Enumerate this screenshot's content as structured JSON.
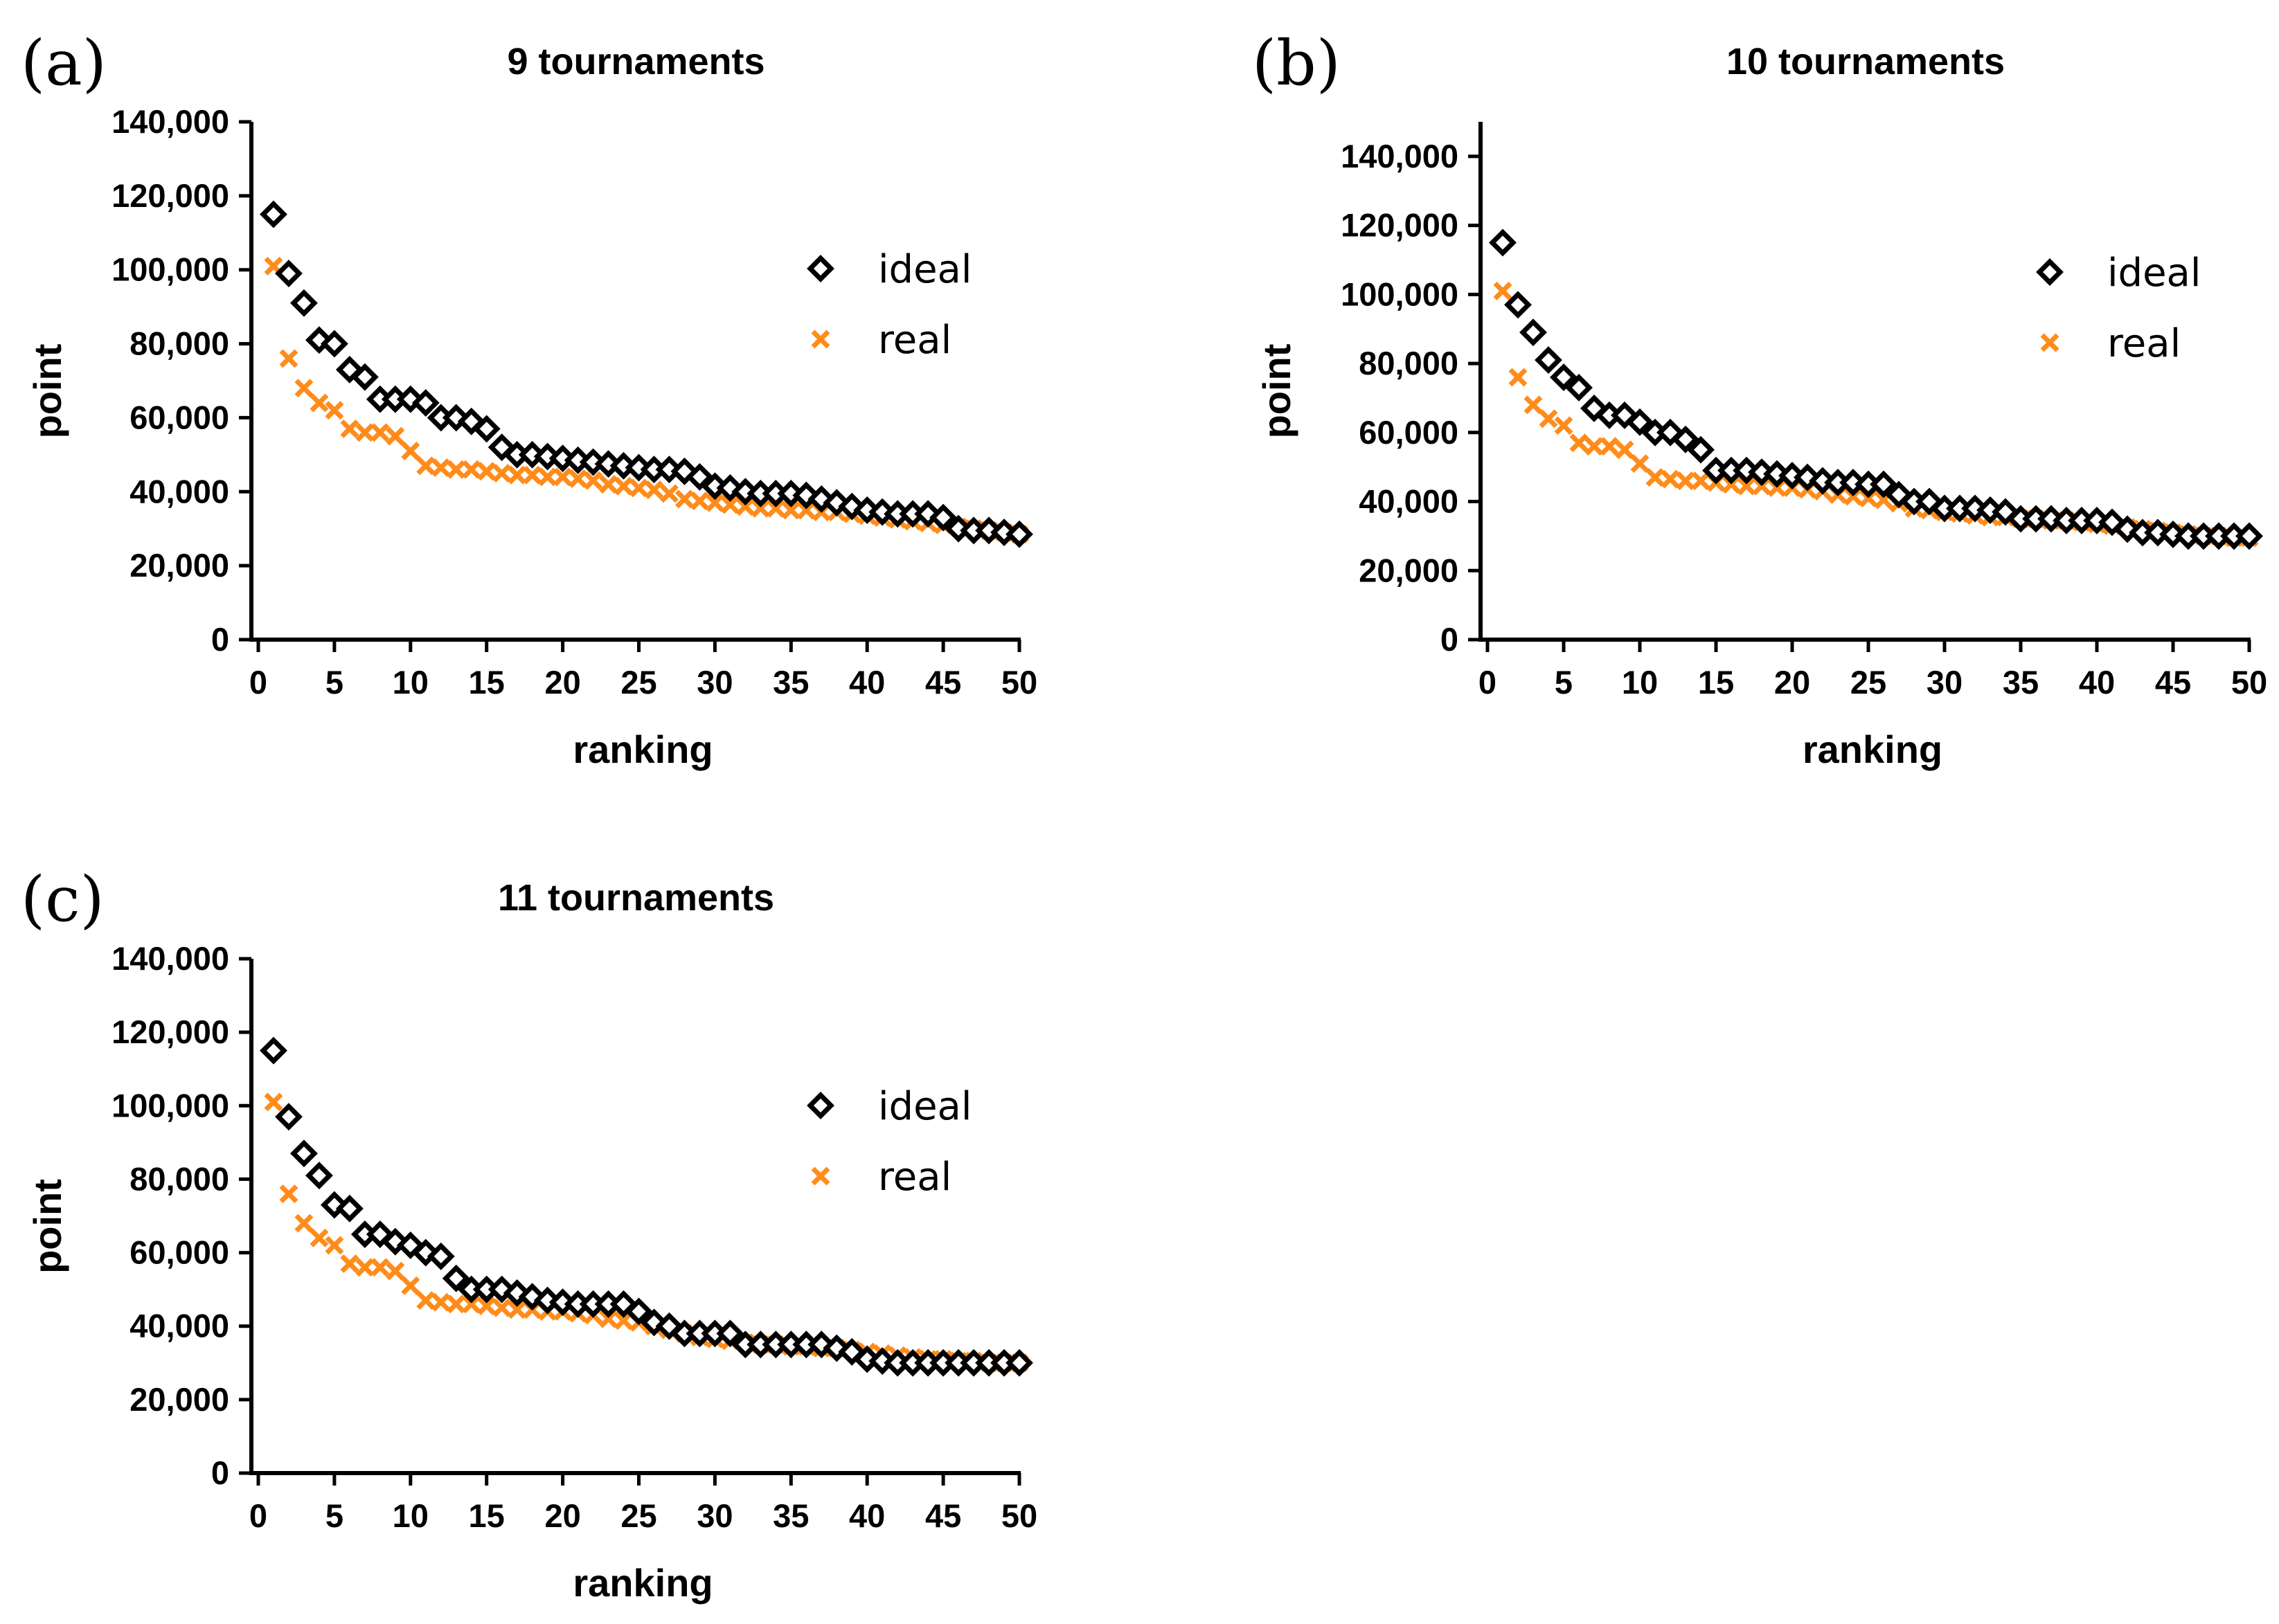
{
  "chart_data": [
    {
      "type": "scatter",
      "panel_label": "(a)",
      "title": "9 tournaments",
      "xlabel": "ranking",
      "ylabel": "point",
      "xlim": [
        0,
        50
      ],
      "ylim": [
        0,
        140000
      ],
      "xticks": [
        "0",
        "5",
        "10",
        "15",
        "20",
        "25",
        "30",
        "35",
        "40",
        "45",
        "50"
      ],
      "yticks": [
        "0",
        "20,000",
        "40,000",
        "60,000",
        "80,000",
        "100,000",
        "120,000",
        "140,000"
      ],
      "legend_position": "top-right",
      "series": [
        {
          "name": "ideal",
          "marker": "diamond",
          "color": "#000000",
          "x": [
            1,
            2,
            3,
            4,
            5,
            6,
            7,
            8,
            9,
            10,
            11,
            12,
            13,
            14,
            15,
            16,
            17,
            18,
            19,
            20,
            21,
            22,
            23,
            24,
            25,
            26,
            27,
            28,
            29,
            30,
            31,
            32,
            33,
            34,
            35,
            36,
            37,
            38,
            39,
            40,
            41,
            42,
            43,
            44,
            45,
            46,
            47,
            48,
            49,
            50
          ],
          "y": [
            115000,
            99000,
            91000,
            81000,
            80000,
            73000,
            71000,
            65000,
            65000,
            65000,
            64000,
            60000,
            60000,
            59000,
            57000,
            52000,
            50000,
            50000,
            49500,
            49000,
            48500,
            48000,
            47500,
            47000,
            46500,
            46000,
            46000,
            45500,
            44000,
            41500,
            41000,
            40000,
            39500,
            39500,
            39500,
            39000,
            38000,
            37000,
            36000,
            35000,
            34500,
            34000,
            34000,
            34000,
            33000,
            30000,
            29500,
            29500,
            29000,
            28500
          ]
        },
        {
          "name": "real",
          "marker": "x",
          "color": "#ff8c1a",
          "x": [
            1,
            2,
            3,
            4,
            5,
            6,
            7,
            8,
            9,
            10,
            11,
            12,
            13,
            14,
            15,
            16,
            17,
            18,
            19,
            20,
            21,
            22,
            23,
            24,
            25,
            26,
            27,
            28,
            29,
            30,
            31,
            32,
            33,
            34,
            35,
            36,
            37,
            38,
            39,
            40,
            41,
            42,
            43,
            44,
            45,
            46,
            47,
            48,
            49,
            50
          ],
          "y": [
            101000,
            76000,
            68000,
            64000,
            62000,
            57000,
            56000,
            56000,
            55000,
            51000,
            47000,
            46500,
            46000,
            46000,
            45500,
            45000,
            44500,
            44500,
            44000,
            44000,
            43500,
            43000,
            42000,
            41500,
            41000,
            40500,
            39500,
            38000,
            37500,
            37000,
            36500,
            36000,
            35500,
            35500,
            35000,
            35000,
            34500,
            34500,
            34000,
            33500,
            33000,
            32500,
            32000,
            31500,
            31000,
            30500,
            30000,
            29500,
            29000,
            28500
          ]
        }
      ]
    },
    {
      "type": "scatter",
      "panel_label": "(b)",
      "title": "10 tournaments",
      "xlabel": "ranking",
      "ylabel": "point",
      "xlim": [
        0,
        50
      ],
      "ylim": [
        0,
        150000
      ],
      "xticks": [
        "0",
        "5",
        "10",
        "15",
        "20",
        "25",
        "30",
        "35",
        "40",
        "45",
        "50"
      ],
      "yticks": [
        "0",
        "20,000",
        "40,000",
        "60,000",
        "80,000",
        "100,000",
        "120,000",
        "140,000"
      ],
      "legend_position": "top-right",
      "series": [
        {
          "name": "ideal",
          "marker": "diamond",
          "color": "#000000",
          "x": [
            1,
            2,
            3,
            4,
            5,
            6,
            7,
            8,
            9,
            10,
            11,
            12,
            13,
            14,
            15,
            16,
            17,
            18,
            19,
            20,
            21,
            22,
            23,
            24,
            25,
            26,
            27,
            28,
            29,
            30,
            31,
            32,
            33,
            34,
            35,
            36,
            37,
            38,
            39,
            40,
            41,
            42,
            43,
            44,
            45,
            46,
            47,
            48,
            49,
            50
          ],
          "y": [
            115000,
            97000,
            89000,
            81000,
            76000,
            73000,
            67000,
            65000,
            65000,
            63000,
            60000,
            60000,
            58000,
            55000,
            49000,
            49000,
            49000,
            48500,
            48000,
            47500,
            47000,
            46000,
            45500,
            45500,
            45000,
            45000,
            42000,
            40000,
            40000,
            38000,
            38000,
            38000,
            37500,
            37000,
            35000,
            35000,
            35000,
            34500,
            34500,
            34500,
            34000,
            32000,
            31000,
            31000,
            30500,
            30000,
            30000,
            30000,
            30000,
            30000
          ]
        },
        {
          "name": "real",
          "marker": "x",
          "color": "#ff8c1a",
          "x": [
            1,
            2,
            3,
            4,
            5,
            6,
            7,
            8,
            9,
            10,
            11,
            12,
            13,
            14,
            15,
            16,
            17,
            18,
            19,
            20,
            21,
            22,
            23,
            24,
            25,
            26,
            27,
            28,
            29,
            30,
            31,
            32,
            33,
            34,
            35,
            36,
            37,
            38,
            39,
            40,
            41,
            42,
            43,
            44,
            45,
            46,
            47,
            48,
            49,
            50
          ],
          "y": [
            101000,
            76000,
            68000,
            64000,
            62000,
            57000,
            56000,
            56000,
            55000,
            51000,
            47000,
            46500,
            46000,
            46000,
            45500,
            45000,
            44500,
            44500,
            44000,
            44000,
            43500,
            43000,
            42000,
            41500,
            41000,
            40500,
            39500,
            38000,
            37500,
            37000,
            36500,
            36000,
            35500,
            35500,
            35000,
            35000,
            34500,
            34500,
            34000,
            33500,
            33000,
            32500,
            32000,
            31500,
            31000,
            30500,
            30000,
            30000,
            29500,
            29500
          ]
        }
      ]
    },
    {
      "type": "scatter",
      "panel_label": "(c)",
      "title": "11 tournaments",
      "xlabel": "ranking",
      "ylabel": "point",
      "xlim": [
        0,
        50
      ],
      "ylim": [
        0,
        140000
      ],
      "xticks": [
        "0",
        "5",
        "10",
        "15",
        "20",
        "25",
        "30",
        "35",
        "40",
        "45",
        "50"
      ],
      "yticks": [
        "0",
        "20,000",
        "40,000",
        "60,000",
        "80,000",
        "100,000",
        "120,000",
        "140,000"
      ],
      "legend_position": "top-right",
      "series": [
        {
          "name": "ideal",
          "marker": "diamond",
          "color": "#000000",
          "x": [
            1,
            2,
            3,
            4,
            5,
            6,
            7,
            8,
            9,
            10,
            11,
            12,
            13,
            14,
            15,
            16,
            17,
            18,
            19,
            20,
            21,
            22,
            23,
            24,
            25,
            26,
            27,
            28,
            29,
            30,
            31,
            32,
            33,
            34,
            35,
            36,
            37,
            38,
            39,
            40,
            41,
            42,
            43,
            44,
            45,
            46,
            47,
            48,
            49,
            50
          ],
          "y": [
            115000,
            97000,
            87000,
            81000,
            73000,
            72000,
            65000,
            65000,
            63000,
            62000,
            60000,
            59000,
            53000,
            50000,
            50000,
            50000,
            49000,
            48000,
            47000,
            46500,
            46000,
            46000,
            46000,
            46000,
            44000,
            41000,
            40000,
            38000,
            38000,
            38000,
            38000,
            35000,
            35000,
            35000,
            35000,
            35000,
            35000,
            34000,
            33000,
            31000,
            30500,
            30000,
            30000,
            30000,
            30000,
            30000,
            30000,
            30000,
            30000,
            30000
          ]
        },
        {
          "name": "real",
          "marker": "x",
          "color": "#ff8c1a",
          "x": [
            1,
            2,
            3,
            4,
            5,
            6,
            7,
            8,
            9,
            10,
            11,
            12,
            13,
            14,
            15,
            16,
            17,
            18,
            19,
            20,
            21,
            22,
            23,
            24,
            25,
            26,
            27,
            28,
            29,
            30,
            31,
            32,
            33,
            34,
            35,
            36,
            37,
            38,
            39,
            40,
            41,
            42,
            43,
            44,
            45,
            46,
            47,
            48,
            49,
            50
          ],
          "y": [
            101000,
            76000,
            68000,
            64000,
            62000,
            57000,
            56000,
            56000,
            55000,
            51000,
            47000,
            46500,
            46000,
            46000,
            45500,
            45000,
            44500,
            44500,
            44000,
            44000,
            43500,
            43000,
            42000,
            41500,
            41000,
            40000,
            39000,
            38000,
            37000,
            36500,
            36000,
            35500,
            35000,
            35000,
            34500,
            34500,
            34000,
            34000,
            33500,
            33000,
            32500,
            32000,
            31500,
            31000,
            31000,
            30500,
            30500,
            30000,
            30000,
            30000
          ]
        }
      ]
    }
  ]
}
